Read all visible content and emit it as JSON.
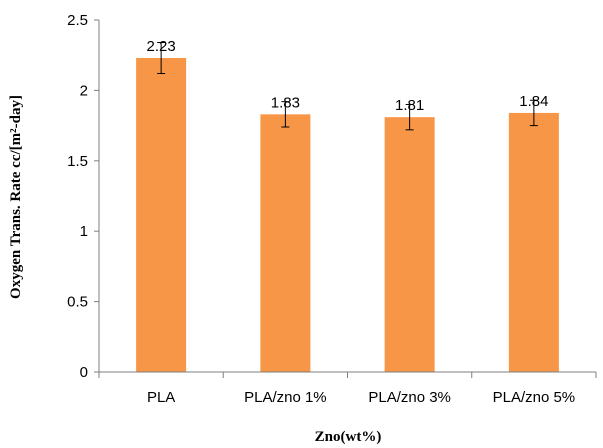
{
  "chart_data": {
    "type": "bar",
    "categories": [
      "PLA",
      "PLA/zno 1%",
      "PLA/zno 3%",
      "PLA/zno 5%"
    ],
    "values": [
      2.23,
      1.83,
      1.81,
      1.84
    ],
    "value_labels": [
      "2.23",
      "1.83",
      "1.81",
      "1.84"
    ],
    "error": [
      0.11,
      0.09,
      0.09,
      0.09
    ],
    "title": "",
    "xlabel": "Zno(wt%)",
    "ylabel": "Oxygen Trans. Rate cc/[m²-day]",
    "ylim": [
      0,
      2.5
    ],
    "yticks": [
      0,
      0.5,
      1,
      1.5,
      2,
      2.5
    ],
    "ytick_labels": [
      "0",
      "0.5",
      "1",
      "1.5",
      "2",
      "2.5"
    ],
    "bar_color": "#F79646",
    "grid": false,
    "legend": "none"
  }
}
